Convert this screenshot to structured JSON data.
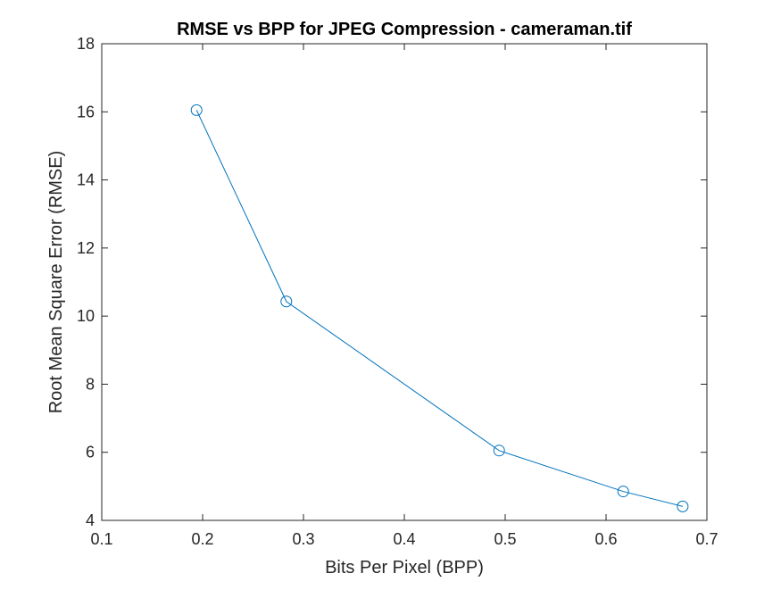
{
  "chart_data": {
    "type": "line",
    "title": "RMSE vs BPP for JPEG Compression - cameraman.tif",
    "xlabel": "Bits Per Pixel (BPP)",
    "ylabel": "Root Mean Square Error (RMSE)",
    "xlim": [
      0.1,
      0.7
    ],
    "ylim": [
      4,
      18
    ],
    "xticks": [
      "0.1",
      "0.2",
      "0.3",
      "0.4",
      "0.5",
      "0.6",
      "0.7"
    ],
    "yticks": [
      "4",
      "6",
      "8",
      "10",
      "12",
      "14",
      "16",
      "18"
    ],
    "grid": false,
    "series": [
      {
        "color": "#0072bd",
        "marker": "circle",
        "x": [
          0.194,
          0.283,
          0.494,
          0.617,
          0.676
        ],
        "y": [
          16.05,
          10.43,
          6.05,
          4.85,
          4.41
        ]
      }
    ]
  }
}
